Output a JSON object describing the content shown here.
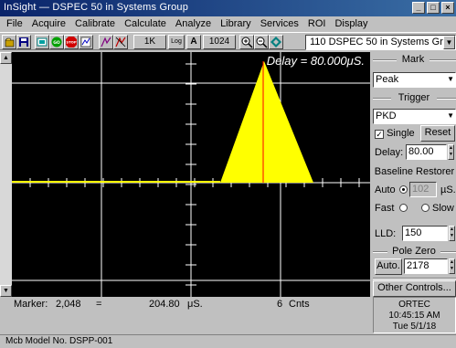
{
  "window": {
    "title": "InSight — DSPEC 50 in Systems Group"
  },
  "menu": [
    "File",
    "Acquire",
    "Calibrate",
    "Calculate",
    "Analyze",
    "Library",
    "Services",
    "ROI",
    "Display"
  ],
  "toolbar": {
    "btn_1k": "1K",
    "btn_log": "Log",
    "btn_a": "A",
    "btn_1024": "1024",
    "detector_select": "110  DSPEC 50 in Systems Gr"
  },
  "spectrum": {
    "delay_text": "Delay = 80.000μS.",
    "peak_color": "#ffff00",
    "marker_color": "#ff0000",
    "grid_color": "#ffffff"
  },
  "status": {
    "marker_label": "Marker:",
    "marker_channel": "2,048",
    "equals": "=",
    "marker_value": "204.80",
    "marker_unit": "μS.",
    "counts": "6",
    "counts_unit": "Cnts"
  },
  "statusbar": {
    "text": "Mcb Model No. DSPP-001"
  },
  "panel": {
    "mark_title": "Mark",
    "mark_value": "Peak",
    "trigger_title": "Trigger",
    "trigger_value": "PKD",
    "single_label": "Single",
    "reset_label": "Reset",
    "delay_label": "Delay:",
    "delay_value": "80.00",
    "baseline_title": "Baseline Restorer",
    "auto_label": "Auto",
    "auto_value": "102",
    "auto_unit": "µS.",
    "fast_label": "Fast",
    "slow_label": "Slow",
    "lld_label": "LLD:",
    "lld_value": "150",
    "pole_zero_title": "Pole Zero",
    "pz_auto_label": "Auto.",
    "pz_value": "2178",
    "other_controls_label": "Other Controls...",
    "ortec_name": "ORTEC",
    "ortec_time": "10:45:15 AM",
    "ortec_date": "Tue 5/1/18"
  }
}
